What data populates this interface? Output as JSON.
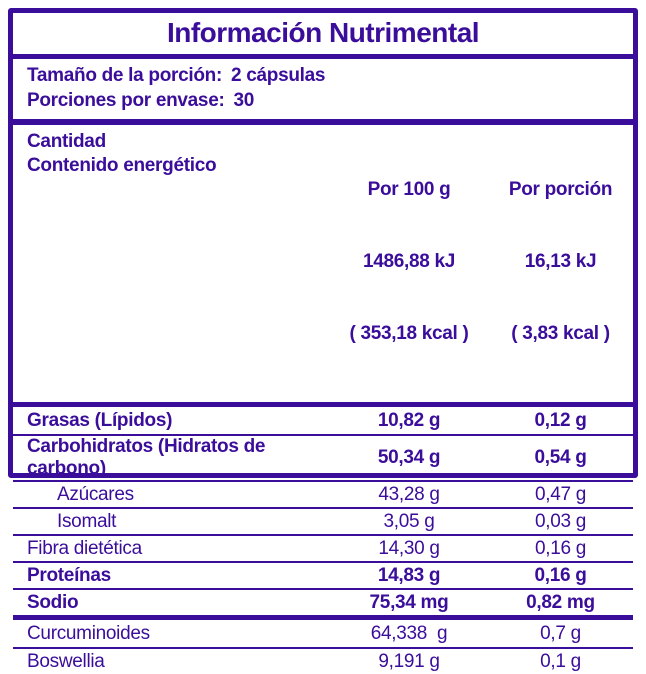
{
  "colors": {
    "accent": "#3A0D9A",
    "background": "#FFFFFF"
  },
  "title": "Información Nutrimental",
  "serving": {
    "size_label": "Tamaño de la porción:",
    "size_value": "2 cápsulas",
    "count_label": "Porciones por envase:",
    "count_value": "30"
  },
  "header": {
    "amount_label": "Cantidad",
    "energy_label": "Contenido energético",
    "per100": {
      "title": "Por 100 g",
      "kj": "1486,88 kJ",
      "kcal": "( 353,18 kcal )"
    },
    "portion": {
      "title": "Por porción",
      "kj": "16,13 kJ",
      "kcal": "( 3,83 kcal )"
    }
  },
  "rows": [
    {
      "label": "Grasas (Lípidos)",
      "per100": "10,82 g",
      "portion": "0,12 g",
      "bold": true,
      "indent": false
    },
    {
      "label": "Carbohidratos (Hidratos de carbono)",
      "per100": "50,34 g",
      "portion": "0,54 g",
      "bold": true,
      "indent": false
    },
    {
      "label": "Azúcares",
      "per100": "43,28 g",
      "portion": "0,47 g",
      "bold": false,
      "indent": true
    },
    {
      "label": "Isomalt",
      "per100": "3,05 g",
      "portion": "0,03 g",
      "bold": false,
      "indent": true
    },
    {
      "label": "Fibra dietética",
      "per100": "14,30 g",
      "portion": "0,16 g",
      "bold": false,
      "indent": false
    },
    {
      "label": "Proteínas",
      "per100": "14,83 g",
      "portion": "0,16 g",
      "bold": true,
      "indent": false
    },
    {
      "label": "Sodio",
      "per100": "75,34 mg",
      "portion": "0,82 mg",
      "bold": true,
      "indent": false
    }
  ],
  "extra_rows": [
    {
      "label": "Curcuminoides",
      "per100": "64,338  g",
      "portion": "0,7 g",
      "bold": false,
      "indent": false
    },
    {
      "label": "Boswellia",
      "per100": "9,191 g",
      "portion": "0,1 g",
      "bold": false,
      "indent": false
    }
  ]
}
